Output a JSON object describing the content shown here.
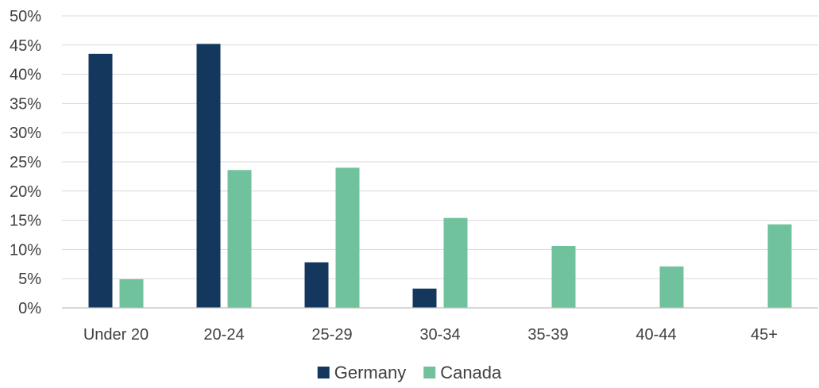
{
  "chart_data": {
    "type": "bar",
    "categories": [
      "Under 20",
      "20-24",
      "25-29",
      "30-34",
      "35-39",
      "40-44",
      "45+"
    ],
    "series": [
      {
        "name": "Germany",
        "color": "#14375e",
        "values": [
          43.5,
          45.2,
          7.8,
          3.3,
          0,
          0,
          0
        ]
      },
      {
        "name": "Canada",
        "color": "#70c29d",
        "values": [
          4.9,
          23.6,
          24.0,
          15.4,
          10.6,
          7.1,
          14.3
        ]
      }
    ],
    "title": "",
    "xlabel": "",
    "ylabel": "",
    "ylim": [
      0,
      50
    ],
    "yticks": [
      "0%",
      "5%",
      "10%",
      "15%",
      "20%",
      "25%",
      "30%",
      "35%",
      "40%",
      "45%",
      "50%"
    ],
    "grid": true,
    "legend_position": "bottom"
  }
}
